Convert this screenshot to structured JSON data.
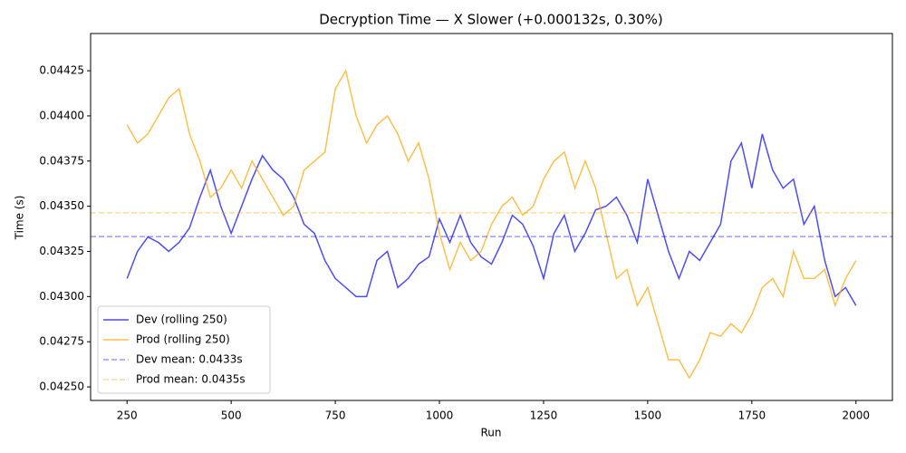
{
  "chart_data": {
    "type": "line",
    "title": "Decryption Time — X Slower (+0.000132s, 0.30%)",
    "x_label": "Run",
    "y_label": "Time (s)",
    "x": [
      250,
      275,
      300,
      325,
      350,
      375,
      400,
      425,
      450,
      475,
      500,
      525,
      550,
      575,
      600,
      625,
      650,
      675,
      700,
      725,
      750,
      775,
      800,
      825,
      850,
      875,
      900,
      925,
      950,
      975,
      1000,
      1025,
      1050,
      1075,
      1100,
      1125,
      1150,
      1175,
      1200,
      1225,
      1250,
      1275,
      1300,
      1325,
      1350,
      1375,
      1400,
      1425,
      1450,
      1475,
      1500,
      1525,
      1550,
      1575,
      1600,
      1625,
      1650,
      1675,
      1700,
      1725,
      1750,
      1775,
      1800,
      1825,
      1850,
      1875,
      1900,
      1925,
      1950,
      1975,
      2000
    ],
    "series": [
      {
        "name": "Dev (rolling 250)",
        "color": "#0000ff",
        "values": [
          0.0431,
          0.04325,
          0.04333,
          0.0433,
          0.04325,
          0.0433,
          0.04338,
          0.04355,
          0.0437,
          0.0435,
          0.04335,
          0.0435,
          0.04365,
          0.04378,
          0.0437,
          0.04365,
          0.04355,
          0.0434,
          0.04335,
          0.0432,
          0.0431,
          0.04305,
          0.043,
          0.043,
          0.0432,
          0.04325,
          0.04305,
          0.0431,
          0.04318,
          0.04322,
          0.04343,
          0.0433,
          0.04345,
          0.0433,
          0.04322,
          0.04318,
          0.0433,
          0.04345,
          0.0434,
          0.04328,
          0.0431,
          0.04335,
          0.04345,
          0.04325,
          0.04335,
          0.04348,
          0.0435,
          0.04355,
          0.04345,
          0.0433,
          0.04365,
          0.04345,
          0.04325,
          0.0431,
          0.04325,
          0.0432,
          0.0433,
          0.0434,
          0.04375,
          0.04385,
          0.0436,
          0.0439,
          0.0437,
          0.0436,
          0.04365,
          0.0434,
          0.0435,
          0.0432,
          0.043,
          0.04305,
          0.04295
        ]
      },
      {
        "name": "Prod (rolling 250)",
        "color": "#ffa500",
        "values": [
          0.04395,
          0.04385,
          0.0439,
          0.044,
          0.0441,
          0.04415,
          0.0439,
          0.04375,
          0.04355,
          0.0436,
          0.0437,
          0.0436,
          0.04375,
          0.04365,
          0.04355,
          0.04345,
          0.0435,
          0.0437,
          0.04375,
          0.0438,
          0.04415,
          0.04425,
          0.044,
          0.04385,
          0.04395,
          0.044,
          0.0439,
          0.04375,
          0.04385,
          0.04365,
          0.04335,
          0.04315,
          0.0433,
          0.0432,
          0.04325,
          0.0434,
          0.0435,
          0.04355,
          0.04345,
          0.0435,
          0.04365,
          0.04375,
          0.0438,
          0.0436,
          0.04375,
          0.0436,
          0.04335,
          0.0431,
          0.04315,
          0.04295,
          0.04305,
          0.04285,
          0.04265,
          0.04265,
          0.04255,
          0.04265,
          0.0428,
          0.04278,
          0.04285,
          0.0428,
          0.0429,
          0.04305,
          0.0431,
          0.043,
          0.04325,
          0.0431,
          0.0431,
          0.04315,
          0.04295,
          0.0431,
          0.0432
        ]
      }
    ],
    "hlines": [
      {
        "name": "Dev mean: 0.0433s",
        "color": "#0000ff",
        "value": 0.043332
      },
      {
        "name": "Prod mean: 0.0435s",
        "color": "#ffa500",
        "value": 0.043464
      }
    ],
    "xlim": [
      162.5,
      2087.5
    ],
    "ylim": [
      0.042425,
      0.044456
    ],
    "xticks": [
      250,
      500,
      750,
      1000,
      1250,
      1500,
      1750,
      2000
    ],
    "yticks": [
      {
        "value": 0.0425,
        "label": "0.04250"
      },
      {
        "value": 0.04275,
        "label": "0.04275"
      },
      {
        "value": 0.043,
        "label": "0.04300"
      },
      {
        "value": 0.04325,
        "label": "0.04325"
      },
      {
        "value": 0.0435,
        "label": "0.04350"
      },
      {
        "value": 0.04375,
        "label": "0.04375"
      },
      {
        "value": 0.044,
        "label": "0.04400"
      },
      {
        "value": 0.04425,
        "label": "0.04425"
      }
    ],
    "legend": "lower left"
  }
}
